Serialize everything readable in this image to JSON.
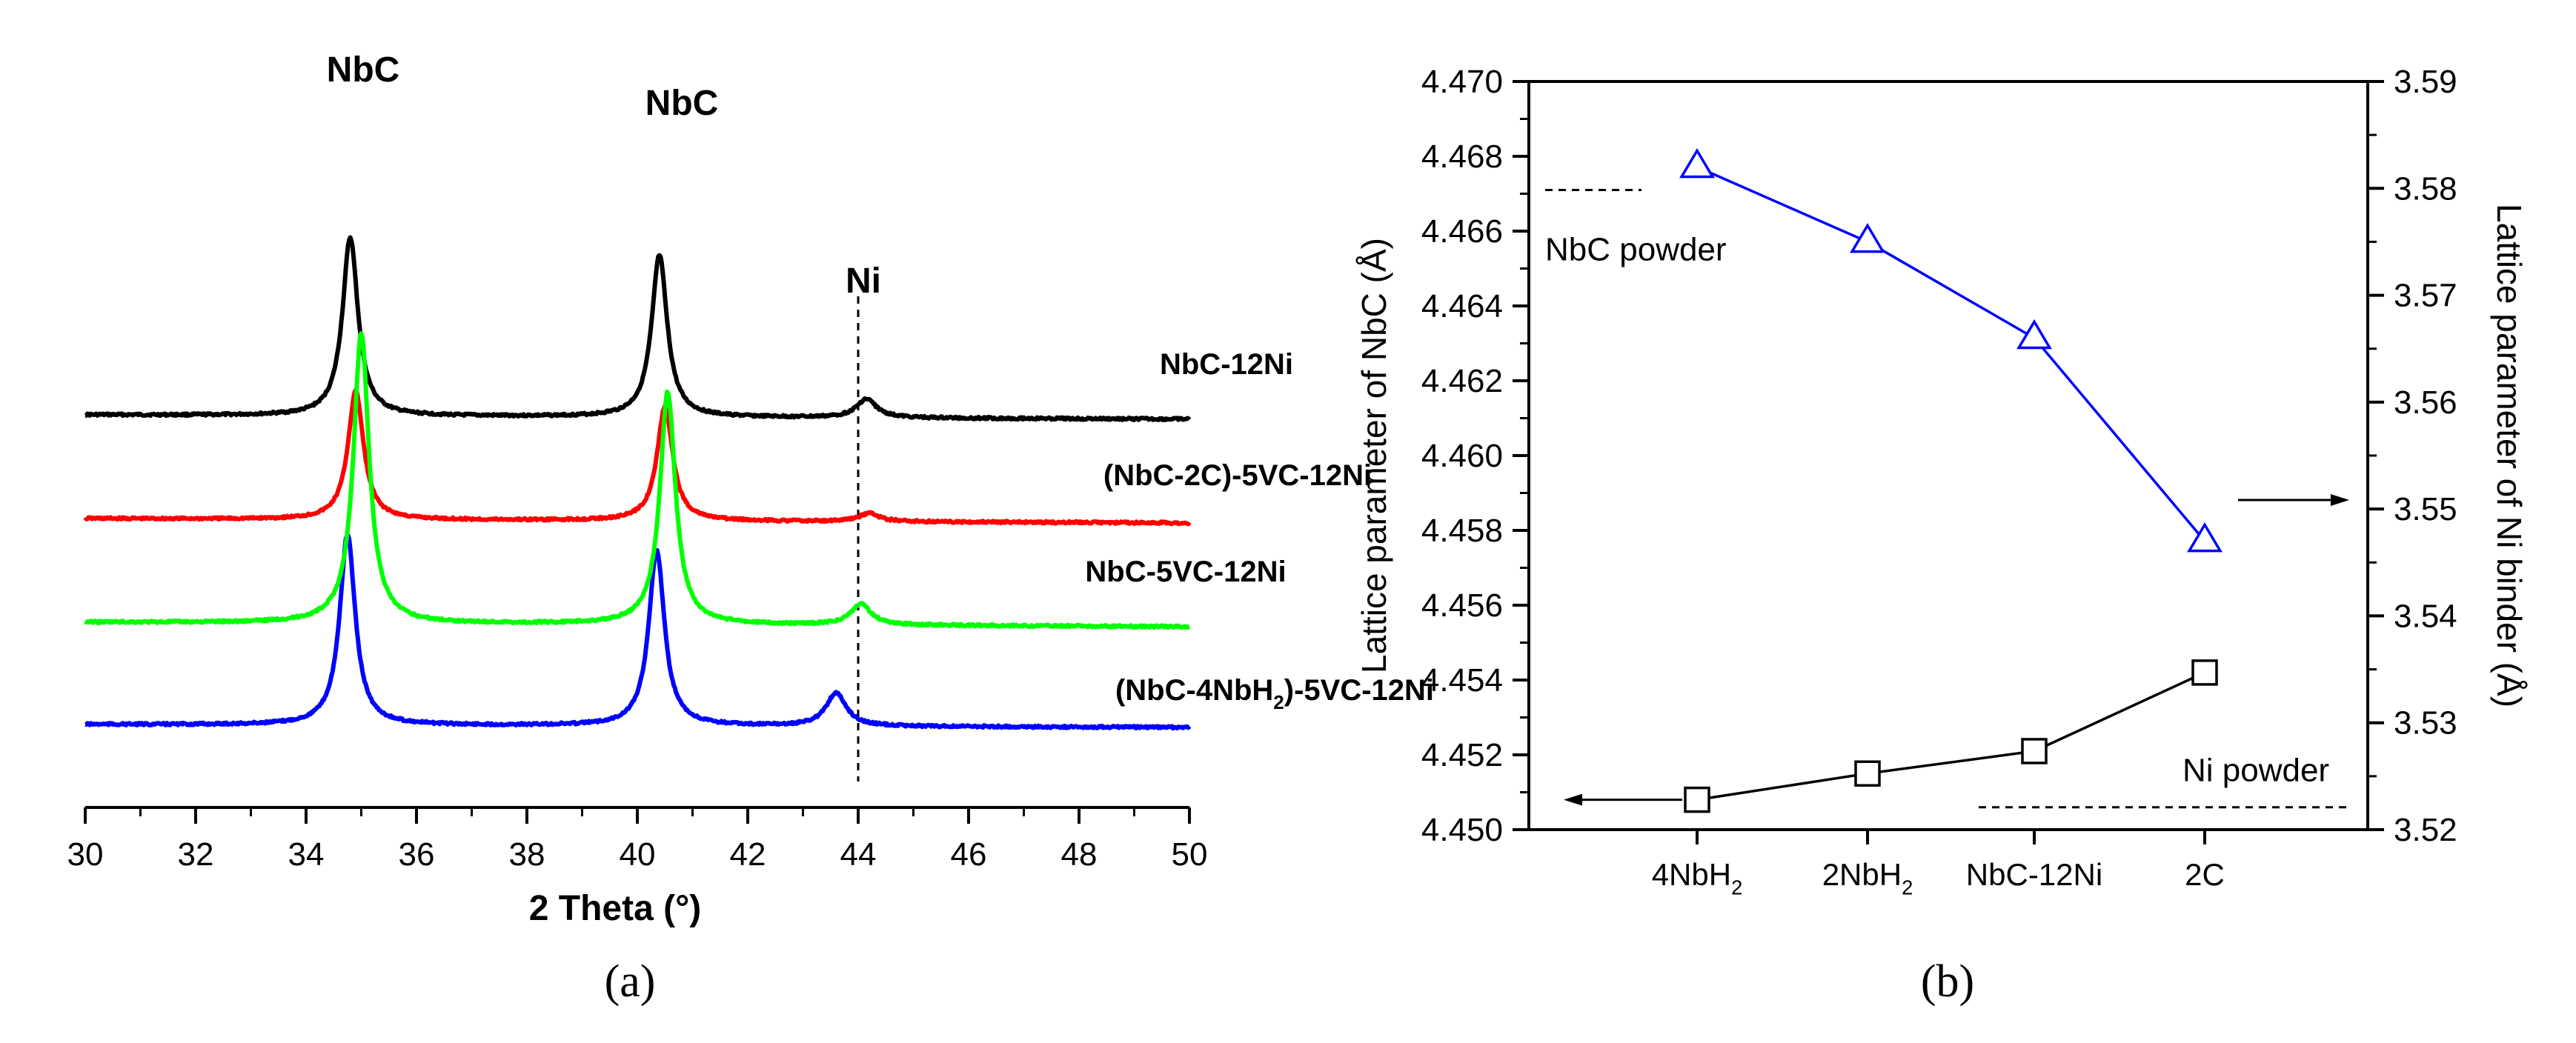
{
  "chart_data": [
    {
      "panel": "a",
      "type": "line",
      "caption": "(a)",
      "xlabel": "2 Theta (°)",
      "ylabel": "",
      "xlim": [
        30,
        50
      ],
      "xticks": [
        "30",
        "32",
        "34",
        "36",
        "38",
        "40",
        "42",
        "44",
        "46",
        "48",
        "50"
      ],
      "grid": false,
      "peak_labels": [
        "NbC",
        "NbC",
        "Ni"
      ],
      "peak_positions": [
        34.8,
        40.4,
        44.0
      ],
      "reference_line_x": 44.0,
      "series": [
        {
          "name": "NbC-12Ni",
          "color": "#000000",
          "baseline": 0.0,
          "peaks": [
            {
              "x": 34.8,
              "h": 0.86
            },
            {
              "x": 40.4,
              "h": 0.78
            },
            {
              "x": 44.15,
              "h": 0.09
            }
          ]
        },
        {
          "name": "(NbC-2C)-5VC-12Ni",
          "color": "#ff0000",
          "baseline": 0.0,
          "peaks": [
            {
              "x": 34.9,
              "h": 0.62
            },
            {
              "x": 40.5,
              "h": 0.55
            },
            {
              "x": 44.2,
              "h": 0.04
            }
          ]
        },
        {
          "name": "NbC-5VC-12Ni",
          "color": "#00ff00",
          "baseline": 0.0,
          "peaks": [
            {
              "x": 35.0,
              "h": 1.4
            },
            {
              "x": 40.55,
              "h": 1.12
            },
            {
              "x": 44.05,
              "h": 0.1
            }
          ]
        },
        {
          "name": "(NbC-4NbH₂)-5VC-12Ni",
          "color": "#0000ff",
          "baseline": 0.0,
          "peaks": [
            {
              "x": 34.75,
              "h": 0.92
            },
            {
              "x": 40.35,
              "h": 0.85
            },
            {
              "x": 43.6,
              "h": 0.16
            }
          ]
        }
      ]
    },
    {
      "panel": "b",
      "type": "line",
      "caption": "(b)",
      "xlabel": "",
      "ylabel_left": "Lattice parameter of NbC (Å)",
      "ylabel_right": "Lattice parameter of Ni binder (Å)",
      "ylim_left": [
        4.45,
        4.47
      ],
      "ylim_right": [
        3.52,
        3.59
      ],
      "yticks_left": [
        "4.450",
        "4.452",
        "4.454",
        "4.456",
        "4.458",
        "4.460",
        "4.462",
        "4.464",
        "4.466",
        "4.468",
        "4.470"
      ],
      "yticks_right": [
        "3.52",
        "3.53",
        "3.54",
        "3.55",
        "3.56",
        "3.57",
        "3.58",
        "3.59"
      ],
      "categories": [
        "4NbH₂",
        "2NbH₂",
        "NbC-12Ni",
        "2C"
      ],
      "grid": false,
      "series": [
        {
          "name": "",
          "axis": "left",
          "marker": "square",
          "color": "#000000",
          "values": [
            4.4508,
            4.4515,
            4.4521,
            4.4542
          ]
        },
        {
          "name": "",
          "axis": "right",
          "marker": "triangle",
          "color": "#0000ff",
          "values": [
            3.582,
            3.575,
            3.566,
            3.547
          ]
        }
      ],
      "references": [
        {
          "label": "NbC powder",
          "axis": "left",
          "value": 4.4671
        },
        {
          "label": "Ni powder",
          "axis": "right",
          "value": 3.5221
        }
      ]
    }
  ]
}
